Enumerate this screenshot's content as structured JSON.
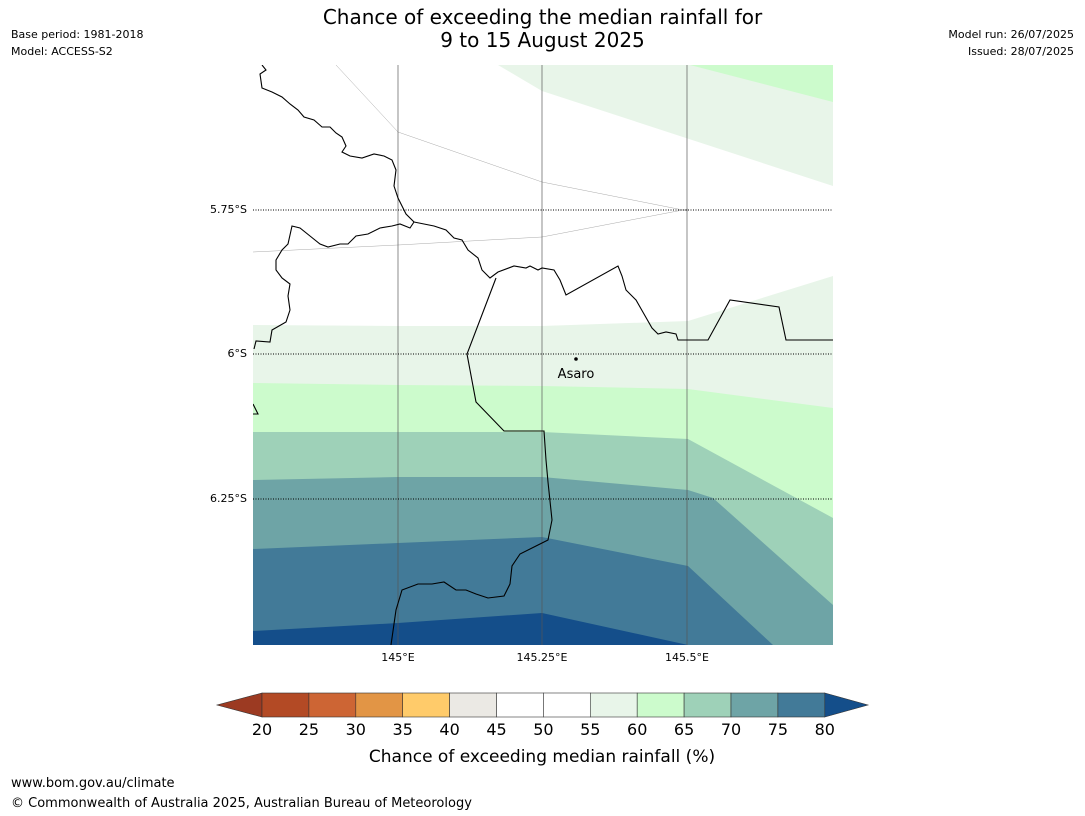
{
  "header": {
    "title_line1": "Chance of exceeding the median rainfall for",
    "title_line2": "9 to 15 August 2025",
    "base_period": "Base period: 1981-2018",
    "model": "Model: ACCESS-S2",
    "model_run": "Model run: 26/07/2025",
    "issued": "Issued: 28/07/2025"
  },
  "map": {
    "lat_labels": [
      "5.75°S",
      "6°S",
      "6.25°S"
    ],
    "lon_labels": [
      "145°E",
      "145.25°E",
      "145.5°E"
    ],
    "place_label": "Asaro",
    "band_colors": {
      "50_55": "#ffffff",
      "55_60": "#e8f5e9",
      "60_65": "#ccfbcc",
      "65_70": "#9ed1b8",
      "70_75": "#6ea4a6",
      "75_80": "#427a98",
      "80_plus": "#144e8a"
    }
  },
  "colorbar": {
    "label": "Chance of exceeding median rainfall (%)",
    "ticks": [
      "20",
      "25",
      "30",
      "35",
      "40",
      "45",
      "50",
      "55",
      "60",
      "65",
      "70",
      "75",
      "80"
    ],
    "under_color": "#9c3a22",
    "over_color": "#144e8a",
    "colors": [
      "#b34a25",
      "#cd6534",
      "#e29545",
      "#ffcb6a",
      "#ebe9e4",
      "#ffffff",
      "#ffffff",
      "#e8f5e9",
      "#ccfbcc",
      "#9ed1b8",
      "#6ea4a6",
      "#427a98"
    ]
  },
  "footer": {
    "url": "www.bom.gov.au/climate",
    "copyright": "© Commonwealth of Australia 2025, Australian Bureau of Meteorology"
  }
}
